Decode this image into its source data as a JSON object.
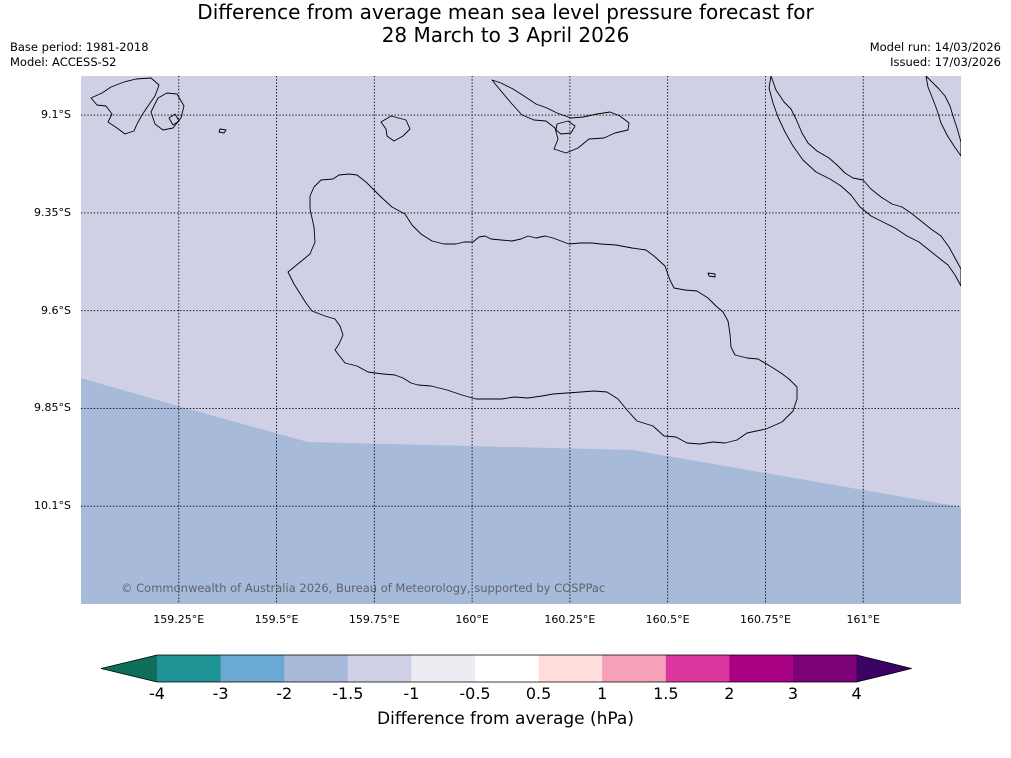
{
  "title": {
    "line1": "Difference from average mean sea level pressure forecast for",
    "line2": "28 March to 3 April 2026"
  },
  "meta": {
    "base_period": "Base period: 1981-2018",
    "model": "Model: ACCESS-S2",
    "model_run": "Model run: 14/03/2026",
    "issued": "Issued: 17/03/2026"
  },
  "map": {
    "lon_range": [
      159.0,
      161.25
    ],
    "lat_range": [
      -9.0,
      -10.35
    ],
    "lat_ticks": [
      "9.1°S",
      "9.35°S",
      "9.6°S",
      "9.85°S",
      "10.1°S"
    ],
    "lon_ticks": [
      "159.25°E",
      "159.5°E",
      "159.75°E",
      "160°E",
      "160.25°E",
      "160.5°E",
      "160.75°E",
      "161°E"
    ],
    "gridlines": true,
    "fill_colors": {
      "band_-2_to_-1.5": "#a8bad9",
      "band_-1.5_to_-1": "#cfd0e6"
    },
    "coastline_color": "#000000",
    "copyright": "© Commonwealth of Australia 2026, Bureau of Meteorology, supported by COSPPac"
  },
  "colorbar": {
    "label": "Difference from average (hPa)",
    "ticks": [
      "-4",
      "-3",
      "-2",
      "-1.5",
      "-1",
      "-0.5",
      "0.5",
      "1",
      "1.5",
      "2",
      "3",
      "4"
    ],
    "under_color": "#0e6e5b",
    "over_color": "#3d0364",
    "bins": [
      "#1f9395",
      "#6aa9d1",
      "#a8bad9",
      "#cfd0e6",
      "#efebf2",
      "#ffffff",
      "#ffdedd",
      "#f7a0ba",
      "#db369d",
      "#aa0284",
      "#7a0177"
    ]
  }
}
